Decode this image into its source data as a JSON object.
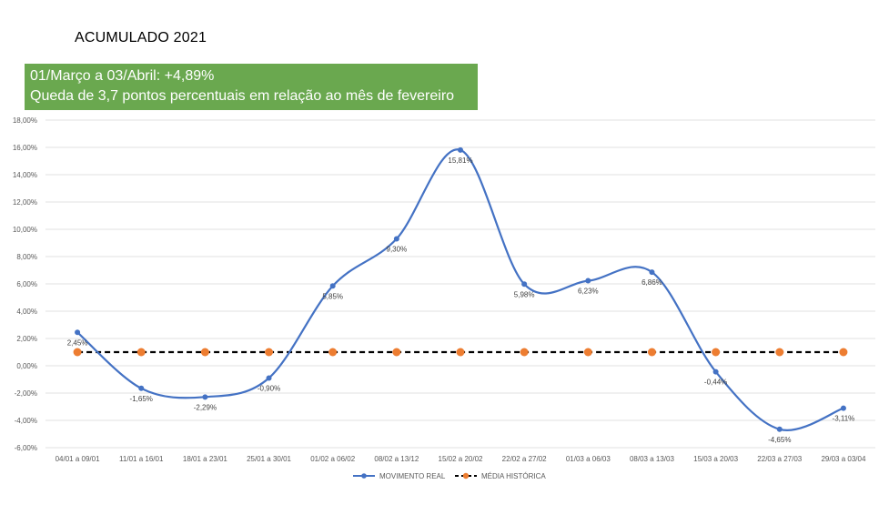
{
  "header": {
    "title": "ACUMULADO 2021"
  },
  "note": {
    "line1": "01/Março a 03/Abril: +4,89%",
    "line2": "Queda de 3,7 pontos percentuais em relação ao mês de fevereiro"
  },
  "colors": {
    "note_bg": "#6aa84f",
    "series_real": "#4472c4",
    "series_media": "#ed7d31",
    "media_line": "#000000",
    "grid": "#d9d9d9"
  },
  "chart_data": {
    "type": "line",
    "title": "",
    "xlabel": "",
    "ylabel": "",
    "ylim": [
      -6,
      18
    ],
    "y_ticks": [
      18,
      16,
      14,
      12,
      10,
      8,
      6,
      4,
      2,
      0,
      -2,
      -4,
      -6
    ],
    "y_tick_labels": [
      "18,00%",
      "16,00%",
      "14,00%",
      "12,00%",
      "10,00%",
      "8,00%",
      "6,00%",
      "4,00%",
      "2,00%",
      "0,00%",
      "-2,00%",
      "-4,00%",
      "-6,00%"
    ],
    "grid": true,
    "legend_position": "bottom",
    "categories": [
      "04/01 a 09/01",
      "11/01 a 16/01",
      "18/01 a 23/01",
      "25/01 a 30/01",
      "01/02 a 06/02",
      "08/02 a 13/12",
      "15/02 a 20/02",
      "22/02 a 27/02",
      "01/03 a 06/03",
      "08/03 a 13/03",
      "15/03 a 20/03",
      "22/03 a 27/03",
      "29/03 a 03/04"
    ],
    "series": [
      {
        "name": "MOVIMENTO REAL",
        "values": [
          2.45,
          -1.65,
          -2.29,
          -0.9,
          5.85,
          9.3,
          15.81,
          5.98,
          6.23,
          6.86,
          -0.44,
          -4.65,
          -3.11
        ],
        "labels": [
          "2,45%",
          "-1,65%",
          "-2,29%",
          "-0,90%",
          "5,85%",
          "9,30%",
          "15,81%",
          "5,98%",
          "6,23%",
          "6,86%",
          "-0,44%",
          "-4,65%",
          "-3,11%"
        ],
        "color": "#4472c4",
        "style": "smooth"
      },
      {
        "name": "MÉDIA HISTÓRICA",
        "values": [
          1,
          1,
          1,
          1,
          1,
          1,
          1,
          1,
          1,
          1,
          1,
          1,
          1
        ],
        "color": "#ed7d31",
        "style": "dashed"
      }
    ]
  }
}
